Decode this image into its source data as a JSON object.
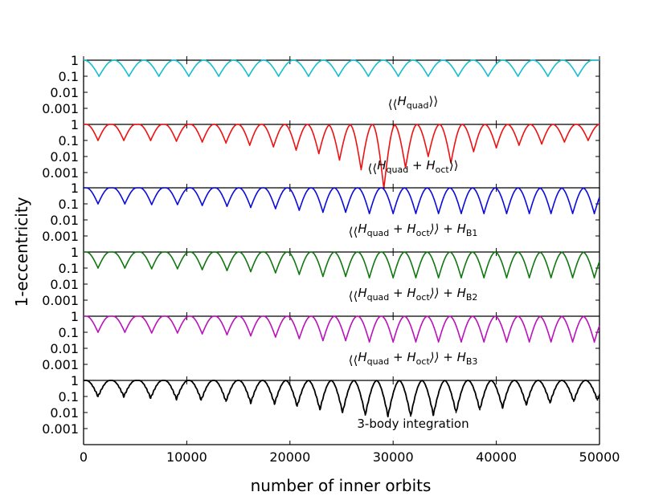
{
  "chart_data": {
    "type": "line",
    "xlabel": "number of inner orbits",
    "ylabel": "1-eccentricity",
    "xlim": [
      0,
      50000
    ],
    "x_ticks": [
      "0",
      "10000",
      "20000",
      "30000",
      "40000",
      "50000"
    ],
    "ylim": [
      0.0001,
      1
    ],
    "y_scale": "log",
    "y_ticks": [
      "1",
      "0.1",
      "0.01",
      "0.001"
    ],
    "panels": [
      {
        "name": "quad",
        "label": "⟨⟨H_quad⟩⟩",
        "label_parts": [
          "⟨⟨",
          "H",
          "quad",
          "⟩⟩",
          ""
        ],
        "color": "#17becf",
        "cycles": [
          {
            "x": 1500,
            "min": 0.1
          },
          {
            "x": 4400,
            "min": 0.1
          },
          {
            "x": 7300,
            "min": 0.1
          },
          {
            "x": 10200,
            "min": 0.1
          },
          {
            "x": 13100,
            "min": 0.1
          },
          {
            "x": 16000,
            "min": 0.1
          },
          {
            "x": 18900,
            "min": 0.1
          },
          {
            "x": 21800,
            "min": 0.1
          },
          {
            "x": 24700,
            "min": 0.1
          },
          {
            "x": 27600,
            "min": 0.1
          },
          {
            "x": 30500,
            "min": 0.1
          },
          {
            "x": 33400,
            "min": 0.1
          },
          {
            "x": 36300,
            "min": 0.1
          },
          {
            "x": 39200,
            "min": 0.1
          },
          {
            "x": 42100,
            "min": 0.1
          },
          {
            "x": 45000,
            "min": 0.1
          },
          {
            "x": 47900,
            "min": 0.1
          }
        ]
      },
      {
        "name": "quad-oct",
        "label": "⟨⟨H_quad + H_oct⟩⟩",
        "label_parts": [
          "⟨⟨",
          "H",
          "quad",
          " + H",
          "oct",
          "⟩⟩",
          ""
        ],
        "color": "#ee1111",
        "cycles": [
          {
            "x": 1400,
            "min": 0.1
          },
          {
            "x": 3900,
            "min": 0.1
          },
          {
            "x": 6500,
            "min": 0.1
          },
          {
            "x": 9000,
            "min": 0.09
          },
          {
            "x": 11500,
            "min": 0.08
          },
          {
            "x": 13800,
            "min": 0.07
          },
          {
            "x": 16100,
            "min": 0.05
          },
          {
            "x": 18400,
            "min": 0.04
          },
          {
            "x": 20600,
            "min": 0.025
          },
          {
            "x": 22800,
            "min": 0.015
          },
          {
            "x": 24800,
            "min": 0.006
          },
          {
            "x": 26900,
            "min": 0.0015
          },
          {
            "x": 29100,
            "min": 0.0001
          },
          {
            "x": 31200,
            "min": 0.002
          },
          {
            "x": 33400,
            "min": 0.01
          },
          {
            "x": 35600,
            "min": 0.004
          },
          {
            "x": 37800,
            "min": 0.02
          },
          {
            "x": 40000,
            "min": 0.035
          },
          {
            "x": 42200,
            "min": 0.05
          },
          {
            "x": 44400,
            "min": 0.06
          },
          {
            "x": 46600,
            "min": 0.08
          },
          {
            "x": 48900,
            "min": 0.1
          }
        ]
      },
      {
        "name": "quad-oct-b1",
        "label": "⟨⟨H_quad + H_oct⟩⟩ + H_B1",
        "label_parts": [
          "⟨⟨",
          "H",
          "quad",
          " + H",
          "oct",
          "⟩⟩ + H",
          "B1"
        ],
        "color": "#0b0bdd",
        "cycles": [
          {
            "x": 1400,
            "min": 0.1
          },
          {
            "x": 4000,
            "min": 0.1
          },
          {
            "x": 6600,
            "min": 0.09
          },
          {
            "x": 9100,
            "min": 0.09
          },
          {
            "x": 11500,
            "min": 0.08
          },
          {
            "x": 13900,
            "min": 0.07
          },
          {
            "x": 16200,
            "min": 0.06
          },
          {
            "x": 18600,
            "min": 0.05
          },
          {
            "x": 20900,
            "min": 0.04
          },
          {
            "x": 23200,
            "min": 0.03
          },
          {
            "x": 25400,
            "min": 0.03
          },
          {
            "x": 27700,
            "min": 0.025
          },
          {
            "x": 30000,
            "min": 0.025
          },
          {
            "x": 32200,
            "min": 0.025
          },
          {
            "x": 34400,
            "min": 0.025
          },
          {
            "x": 36600,
            "min": 0.025
          },
          {
            "x": 38800,
            "min": 0.025
          },
          {
            "x": 41000,
            "min": 0.025
          },
          {
            "x": 43200,
            "min": 0.025
          },
          {
            "x": 45300,
            "min": 0.025
          },
          {
            "x": 47400,
            "min": 0.025
          },
          {
            "x": 49500,
            "min": 0.025
          }
        ]
      },
      {
        "name": "quad-oct-b2",
        "label": "⟨⟨H_quad + H_oct⟩⟩ + H_B2",
        "label_parts": [
          "⟨⟨",
          "H",
          "quad",
          " + H",
          "oct",
          "⟩⟩ + H",
          "B2"
        ],
        "color": "#117711",
        "cycles": [
          {
            "x": 1400,
            "min": 0.1
          },
          {
            "x": 4000,
            "min": 0.1
          },
          {
            "x": 6600,
            "min": 0.09
          },
          {
            "x": 9100,
            "min": 0.09
          },
          {
            "x": 11500,
            "min": 0.08
          },
          {
            "x": 13900,
            "min": 0.07
          },
          {
            "x": 16200,
            "min": 0.06
          },
          {
            "x": 18600,
            "min": 0.05
          },
          {
            "x": 20900,
            "min": 0.04
          },
          {
            "x": 23200,
            "min": 0.03
          },
          {
            "x": 25400,
            "min": 0.03
          },
          {
            "x": 27700,
            "min": 0.025
          },
          {
            "x": 30000,
            "min": 0.025
          },
          {
            "x": 32200,
            "min": 0.025
          },
          {
            "x": 34400,
            "min": 0.025
          },
          {
            "x": 36600,
            "min": 0.025
          },
          {
            "x": 38800,
            "min": 0.025
          },
          {
            "x": 41000,
            "min": 0.025
          },
          {
            "x": 43200,
            "min": 0.025
          },
          {
            "x": 45300,
            "min": 0.025
          },
          {
            "x": 47400,
            "min": 0.025
          },
          {
            "x": 49500,
            "min": 0.025
          }
        ]
      },
      {
        "name": "quad-oct-b3",
        "label": "⟨⟨H_quad + H_oct⟩⟩ + H_B3",
        "label_parts": [
          "⟨⟨",
          "H",
          "quad",
          " + H",
          "oct",
          "⟩⟩ + H",
          "B3"
        ],
        "color": "#bb11bb",
        "cycles": [
          {
            "x": 1400,
            "min": 0.1
          },
          {
            "x": 4000,
            "min": 0.1
          },
          {
            "x": 6600,
            "min": 0.09
          },
          {
            "x": 9100,
            "min": 0.09
          },
          {
            "x": 11500,
            "min": 0.08
          },
          {
            "x": 13900,
            "min": 0.07
          },
          {
            "x": 16200,
            "min": 0.06
          },
          {
            "x": 18600,
            "min": 0.05
          },
          {
            "x": 20900,
            "min": 0.04
          },
          {
            "x": 23200,
            "min": 0.03
          },
          {
            "x": 25400,
            "min": 0.03
          },
          {
            "x": 27700,
            "min": 0.025
          },
          {
            "x": 30000,
            "min": 0.025
          },
          {
            "x": 32200,
            "min": 0.025
          },
          {
            "x": 34400,
            "min": 0.025
          },
          {
            "x": 36600,
            "min": 0.025
          },
          {
            "x": 38800,
            "min": 0.025
          },
          {
            "x": 41000,
            "min": 0.025
          },
          {
            "x": 43200,
            "min": 0.025
          },
          {
            "x": 45300,
            "min": 0.025
          },
          {
            "x": 47400,
            "min": 0.025
          },
          {
            "x": 49500,
            "min": 0.025
          }
        ]
      },
      {
        "name": "3-body",
        "label": "3-body integration",
        "label_parts": [
          "3-body integration"
        ],
        "color": "#000000",
        "cycles": [
          {
            "x": 1400,
            "min": 0.1
          },
          {
            "x": 3900,
            "min": 0.1
          },
          {
            "x": 6500,
            "min": 0.08
          },
          {
            "x": 9000,
            "min": 0.07
          },
          {
            "x": 11400,
            "min": 0.06
          },
          {
            "x": 13800,
            "min": 0.05
          },
          {
            "x": 16200,
            "min": 0.04
          },
          {
            "x": 18500,
            "min": 0.035
          },
          {
            "x": 20700,
            "min": 0.025
          },
          {
            "x": 22900,
            "min": 0.015
          },
          {
            "x": 25100,
            "min": 0.01
          },
          {
            "x": 27300,
            "min": 0.007
          },
          {
            "x": 29500,
            "min": 0.006
          },
          {
            "x": 31700,
            "min": 0.006
          },
          {
            "x": 33900,
            "min": 0.007
          },
          {
            "x": 36100,
            "min": 0.01
          },
          {
            "x": 38400,
            "min": 0.015
          },
          {
            "x": 40600,
            "min": 0.02
          },
          {
            "x": 42900,
            "min": 0.03
          },
          {
            "x": 45200,
            "min": 0.04
          },
          {
            "x": 47500,
            "min": 0.05
          },
          {
            "x": 49800,
            "min": 0.06
          }
        ]
      }
    ]
  }
}
